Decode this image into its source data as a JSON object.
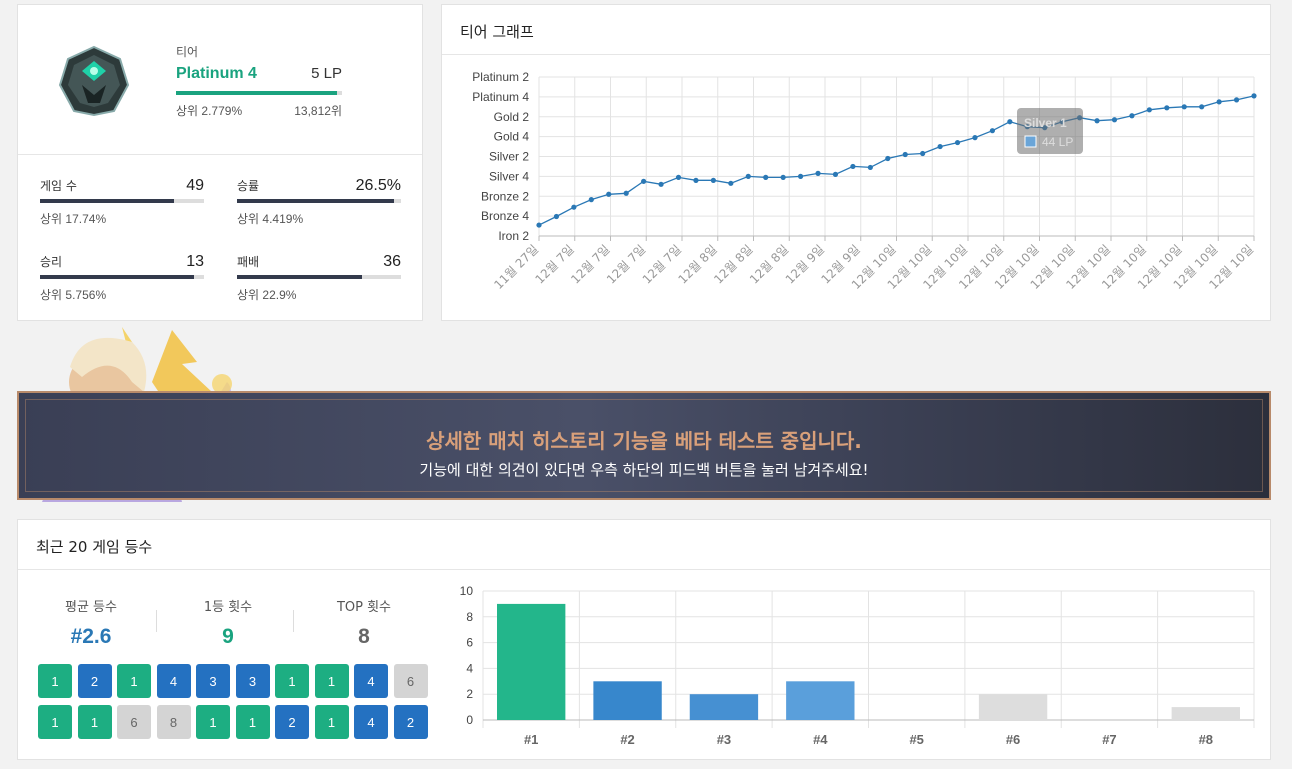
{
  "tier": {
    "label": "티어",
    "name": "Platinum 4",
    "lp": "5 LP",
    "bar_fill_pct": 97,
    "rank_pct": "상위 2.779%",
    "rank_pos": "13,812위"
  },
  "stats": [
    {
      "label": "게임 수",
      "value": "49",
      "sub": "상위 17.74%",
      "fill_pct": 82
    },
    {
      "label": "승률",
      "value": "26.5%",
      "sub": "상위 4.419%",
      "fill_pct": 96
    },
    {
      "label": "승리",
      "value": "13",
      "sub": "상위 5.756%",
      "fill_pct": 94
    },
    {
      "label": "패배",
      "value": "36",
      "sub": "상위 22.9%",
      "fill_pct": 76
    }
  ],
  "graph": {
    "title": "티어 그래프",
    "y_labels": [
      "Platinum 2",
      "Platinum 4",
      "Gold 2",
      "Gold 4",
      "Silver 2",
      "Silver 4",
      "Bronze 2",
      "Bronze 4",
      "Iron 2"
    ],
    "x_labels": [
      "11월 27일",
      "12월 7일",
      "12월 7일",
      "12월 7일",
      "12월 7일",
      "12월 8일",
      "12월 8일",
      "12월 8일",
      "12월 9일",
      "12월 9일",
      "12월 10일",
      "12월 10일",
      "12월 10일",
      "12월 10일",
      "12월 10일",
      "12월 10일",
      "12월 10일",
      "12월 10일",
      "12월 10일",
      "12월 10일",
      "12월 10일"
    ],
    "tooltip": {
      "title": "Silver 1",
      "value": "44 LP"
    },
    "accent": "#2a78b5"
  },
  "chart_data": [
    {
      "type": "line",
      "title": "티어 그래프",
      "y_tick_labels": [
        "Iron 2",
        "Bronze 4",
        "Bronze 2",
        "Silver 4",
        "Silver 2",
        "Gold 4",
        "Gold 2",
        "Platinum 4",
        "Platinum 2"
      ],
      "values": [
        0.55,
        0.98,
        1.45,
        1.83,
        2.1,
        2.15,
        2.75,
        2.6,
        2.95,
        2.8,
        2.8,
        2.65,
        3.0,
        2.95,
        2.95,
        3.0,
        3.15,
        3.1,
        3.5,
        3.45,
        3.9,
        4.1,
        4.15,
        4.5,
        4.7,
        4.95,
        5.3,
        5.75,
        5.5,
        5.45,
        5.75,
        5.95,
        5.8,
        5.85,
        6.05,
        6.35,
        6.45,
        6.5,
        6.5,
        6.75,
        6.85,
        7.05
      ],
      "x_tick_labels": [
        "11월 27일",
        "12월 7일",
        "12월 7일",
        "12월 7일",
        "12월 7일",
        "12월 8일",
        "12월 8일",
        "12월 8일",
        "12월 9일",
        "12월 9일",
        "12월 10일",
        "12월 10일",
        "12월 10일",
        "12월 10일",
        "12월 10일",
        "12월 10일",
        "12월 10일",
        "12월 10일",
        "12월 10일",
        "12월 10일",
        "12월 10일"
      ],
      "ylim": [
        0,
        8
      ],
      "grid": true
    },
    {
      "type": "bar",
      "title": "",
      "categories": [
        "#1",
        "#2",
        "#3",
        "#4",
        "#5",
        "#6",
        "#7",
        "#8"
      ],
      "values": [
        9,
        3,
        2,
        3,
        0,
        2,
        0,
        1
      ],
      "colors": [
        "#23b68b",
        "#3787cc",
        "#4690d2",
        "#5a9fdb",
        "#dddddd",
        "#dddddd",
        "#dddddd",
        "#dddddd"
      ],
      "ylim": [
        0,
        10
      ],
      "y_ticks": [
        "0",
        "2",
        "4",
        "6",
        "8",
        "10"
      ],
      "grid": true
    }
  ],
  "banner": {
    "title": "상세한 매치 히스토리 기능을 베타 테스트 중입니다.",
    "subtitle": "기능에 대한 의견이 있다면 우측 하단의 피드백 버튼을 눌러 남겨주세요!"
  },
  "recent": {
    "title": "최근 20 게임 등수",
    "avg_label": "평균 등수",
    "avg_value": "#2.6",
    "first_label": "1등 횟수",
    "first_value": "9",
    "top_label": "TOP 횟수",
    "top_value": "8",
    "placements": [
      1,
      2,
      1,
      4,
      3,
      3,
      1,
      1,
      4,
      6,
      1,
      1,
      6,
      8,
      1,
      1,
      2,
      1,
      4,
      2
    ],
    "colors": {
      "first": "#1dae82",
      "top": "#2471c1",
      "bottom": "#d4d4d4",
      "avg": "#2a78b5",
      "first_value": "#1aa37f",
      "top_value": "#666666"
    }
  }
}
